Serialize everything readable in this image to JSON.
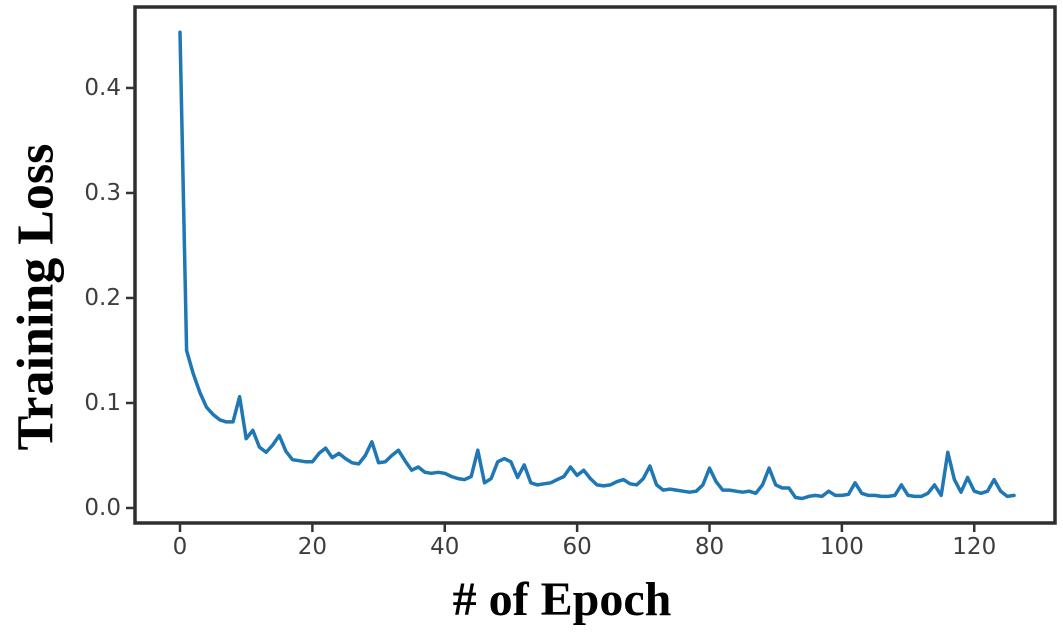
{
  "chart_data": {
    "type": "line",
    "title": "",
    "xlabel": "# of Epoch",
    "ylabel": "Training Loss",
    "legend": null,
    "grid": false,
    "xlim": [
      -6.8,
      132.2
    ],
    "ylim": [
      -0.0143,
      0.4771
    ],
    "x_ticks": [
      0,
      20,
      40,
      60,
      80,
      100,
      120
    ],
    "x_tick_labels": [
      "0",
      "20",
      "40",
      "60",
      "80",
      "100",
      "120"
    ],
    "y_ticks": [
      0.0,
      0.1,
      0.2,
      0.3,
      0.4
    ],
    "y_tick_labels": [
      "0.0",
      "0.1",
      "0.2",
      "0.3",
      "0.4"
    ],
    "colors": {
      "line": "#1f77b4",
      "axis_frame": "#2e2e2e",
      "tick_mark": "#333333",
      "tick_label": "#3d3d3d",
      "axis_label": "#000000",
      "background": "#ffffff"
    },
    "series": [
      {
        "name": "training-loss",
        "x": [
          0,
          1,
          2,
          3,
          4,
          5,
          6,
          7,
          8,
          9,
          10,
          11,
          12,
          13,
          14,
          15,
          16,
          17,
          18,
          19,
          20,
          21,
          22,
          23,
          24,
          25,
          26,
          27,
          28,
          29,
          30,
          31,
          32,
          33,
          34,
          35,
          36,
          37,
          38,
          39,
          40,
          41,
          42,
          43,
          44,
          45,
          46,
          47,
          48,
          49,
          50,
          51,
          52,
          53,
          54,
          55,
          56,
          57,
          58,
          59,
          60,
          61,
          62,
          63,
          64,
          65,
          66,
          67,
          68,
          69,
          70,
          71,
          72,
          73,
          74,
          75,
          76,
          77,
          78,
          79,
          80,
          81,
          82,
          83,
          84,
          85,
          86,
          87,
          88,
          89,
          90,
          91,
          92,
          93,
          94,
          95,
          96,
          97,
          98,
          99,
          100,
          101,
          102,
          103,
          104,
          105,
          106,
          107,
          108,
          109,
          110,
          111,
          112,
          113,
          114,
          115,
          116,
          117,
          118,
          119,
          120,
          121,
          122,
          123,
          124,
          125,
          126
        ],
        "y": [
          0.453,
          0.15,
          0.128,
          0.11,
          0.096,
          0.089,
          0.084,
          0.082,
          0.082,
          0.106,
          0.066,
          0.074,
          0.058,
          0.053,
          0.06,
          0.069,
          0.054,
          0.046,
          0.045,
          0.044,
          0.044,
          0.052,
          0.057,
          0.048,
          0.052,
          0.047,
          0.043,
          0.042,
          0.05,
          0.063,
          0.043,
          0.044,
          0.05,
          0.055,
          0.045,
          0.036,
          0.039,
          0.034,
          0.033,
          0.034,
          0.033,
          0.03,
          0.028,
          0.027,
          0.03,
          0.055,
          0.024,
          0.028,
          0.044,
          0.047,
          0.044,
          0.029,
          0.041,
          0.024,
          0.022,
          0.023,
          0.024,
          0.027,
          0.03,
          0.039,
          0.031,
          0.036,
          0.028,
          0.022,
          0.021,
          0.022,
          0.025,
          0.027,
          0.023,
          0.022,
          0.028,
          0.04,
          0.022,
          0.017,
          0.018,
          0.017,
          0.016,
          0.015,
          0.016,
          0.022,
          0.038,
          0.025,
          0.017,
          0.017,
          0.016,
          0.015,
          0.016,
          0.014,
          0.022,
          0.038,
          0.022,
          0.019,
          0.019,
          0.01,
          0.009,
          0.011,
          0.012,
          0.011,
          0.016,
          0.012,
          0.012,
          0.013,
          0.024,
          0.014,
          0.012,
          0.012,
          0.011,
          0.011,
          0.012,
          0.022,
          0.012,
          0.011,
          0.011,
          0.014,
          0.022,
          0.012,
          0.053,
          0.027,
          0.015,
          0.029,
          0.016,
          0.014,
          0.016,
          0.027,
          0.016,
          0.011,
          0.012
        ]
      }
    ]
  }
}
